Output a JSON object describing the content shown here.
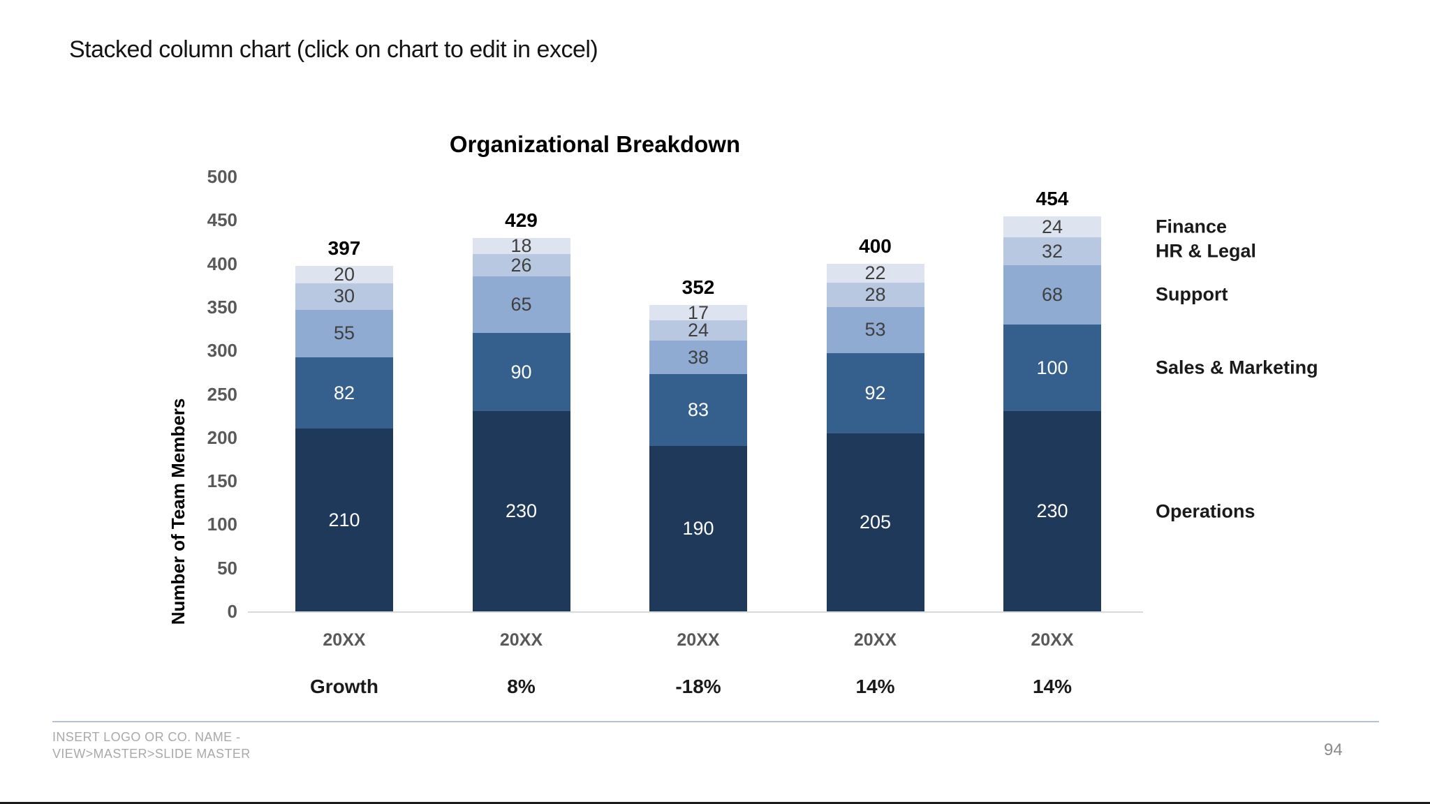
{
  "slide": {
    "title": "Stacked column chart (click on chart to edit in excel)",
    "footer_line1": "INSERT LOGO OR CO. NAME -",
    "footer_line2": "VIEW>MASTER>SLIDE MASTER",
    "page_number": "94"
  },
  "chart_data": {
    "type": "bar",
    "stacked": true,
    "title": "Organizational Breakdown",
    "ylabel": "Number of Team Members",
    "ylim": [
      0,
      500
    ],
    "ytick_step": 50,
    "grid": false,
    "legend_position": "right",
    "categories": [
      "20XX",
      "20XX",
      "20XX",
      "20XX",
      "20XX"
    ],
    "series": [
      {
        "name": "Operations",
        "color": "#1f395a",
        "label_color": "#ffffff",
        "values": [
          210,
          230,
          190,
          205,
          230
        ]
      },
      {
        "name": "Sales & Marketing",
        "color": "#35608e",
        "label_color": "#ffffff",
        "values": [
          82,
          90,
          83,
          92,
          100
        ]
      },
      {
        "name": "Support",
        "color": "#8fabd2",
        "label_color": "#3f3f3f",
        "values": [
          55,
          65,
          38,
          53,
          68
        ]
      },
      {
        "name": "HR & Legal",
        "color": "#b8c8e1",
        "label_color": "#3f3f3f",
        "values": [
          30,
          26,
          24,
          28,
          32
        ]
      },
      {
        "name": "Finance",
        "color": "#dde4f0",
        "label_color": "#3f3f3f",
        "values": [
          20,
          18,
          17,
          22,
          24
        ]
      }
    ],
    "totals": [
      397,
      429,
      352,
      400,
      454
    ],
    "growth_row": [
      "Growth",
      "8%",
      "-18%",
      "14%",
      "14%"
    ]
  }
}
